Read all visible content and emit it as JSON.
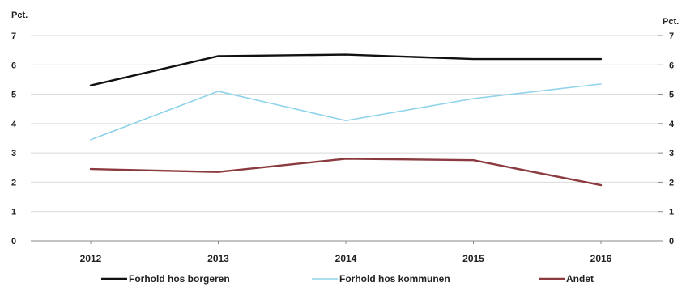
{
  "chart_data": {
    "type": "line",
    "x": [
      "2012",
      "2013",
      "2014",
      "2015",
      "2016"
    ],
    "y_unit_left": "Pct.",
    "y_unit_right": "Pct.",
    "ylim": [
      0,
      7
    ],
    "yticks": [
      "0",
      "1",
      "2",
      "3",
      "4",
      "5",
      "6",
      "7"
    ],
    "grid": true,
    "legend_position": "bottom",
    "series": [
      {
        "name": "Forhold hos borgeren",
        "color": "#111111",
        "values": [
          5.3,
          6.3,
          6.35,
          6.2,
          6.2
        ]
      },
      {
        "name": "Forhold hos kommunen",
        "color": "#8fd3ea",
        "values": [
          3.45,
          5.1,
          4.1,
          4.85,
          5.35
        ]
      },
      {
        "name": "Andet",
        "color": "#8b3a3f",
        "values": [
          2.45,
          2.35,
          2.8,
          2.75,
          1.9
        ]
      }
    ]
  }
}
